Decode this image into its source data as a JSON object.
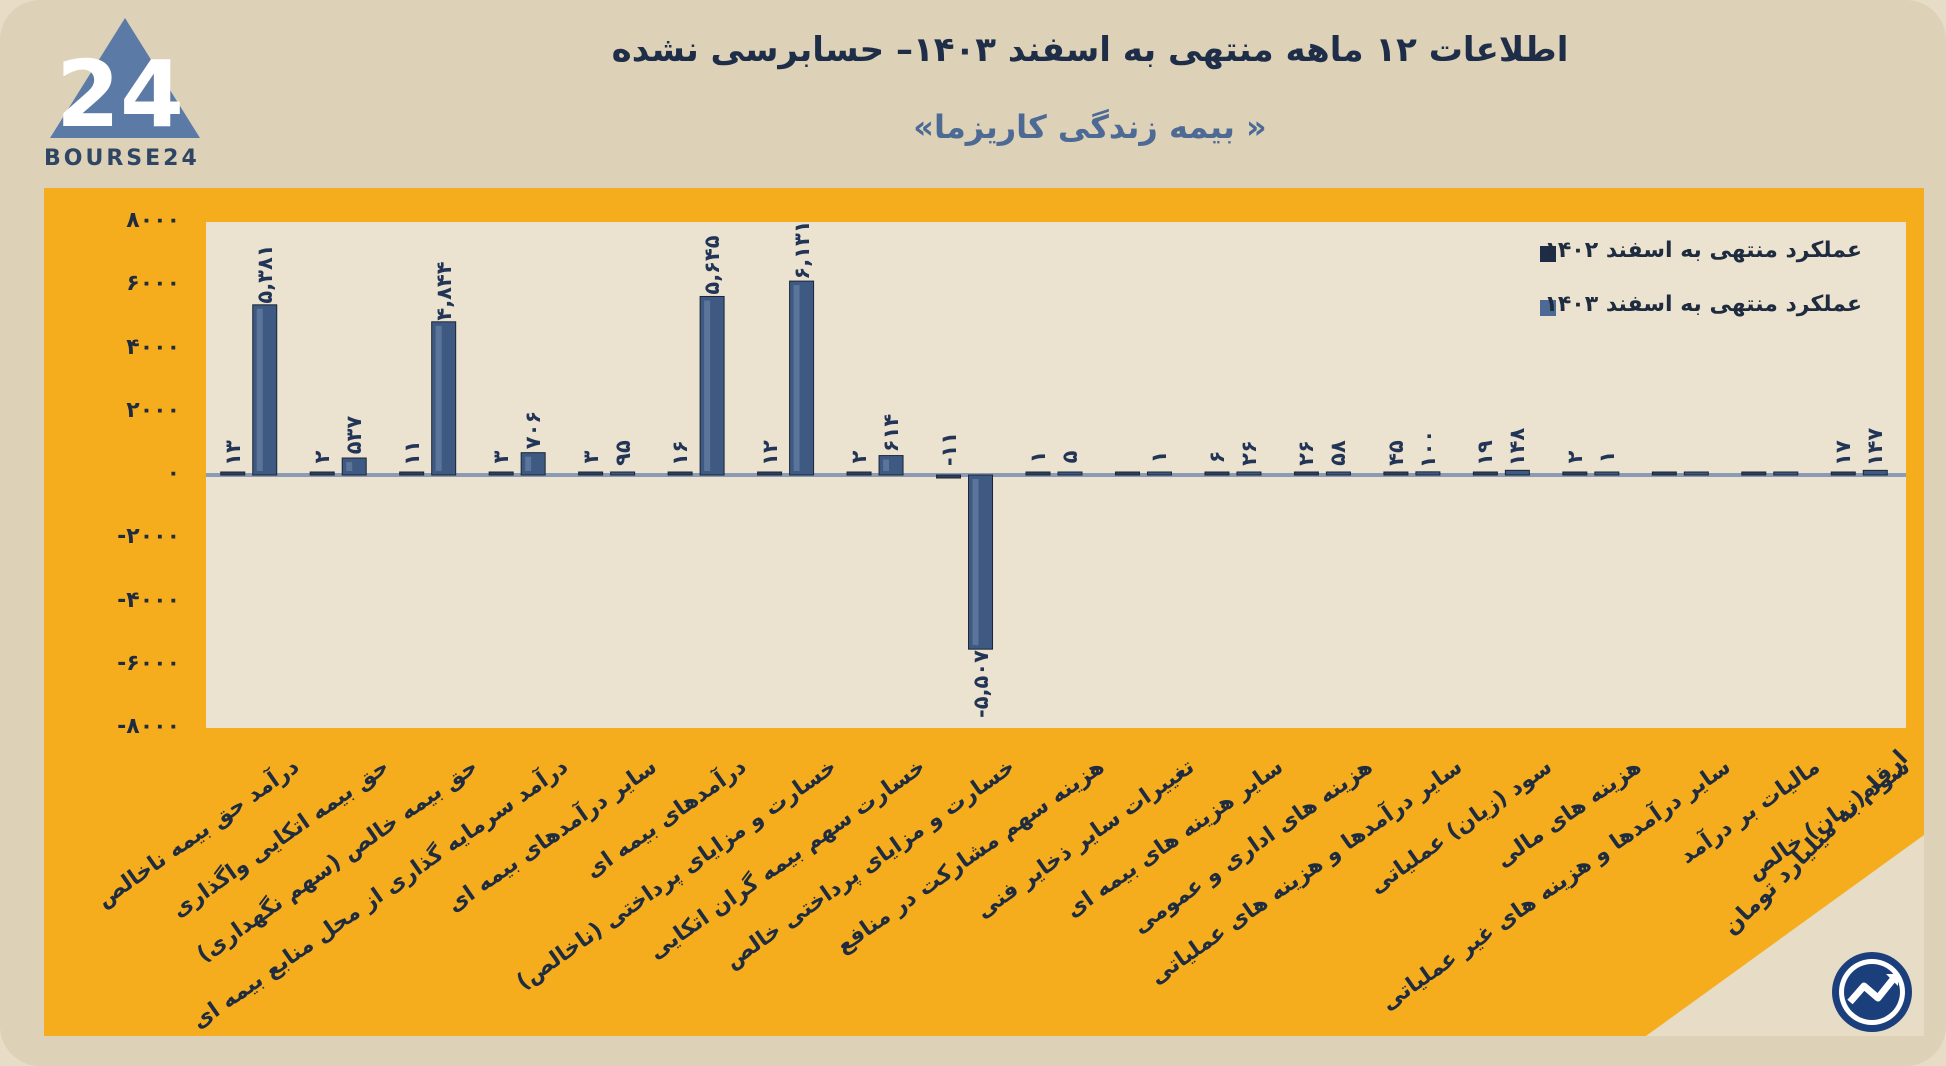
{
  "header": {
    "title": "اطلاعات ۱۲ ماهه منتهی به اسفند  ۱۴۰۳– حسابرسی نشده",
    "subtitle": "« بیمه زندگی کاریزما»",
    "logo_text": "BOURSE24",
    "logo_mark": "24"
  },
  "unit_note": "ارقام به میلیارد تومان",
  "colors": {
    "panel": "#f6ad1d",
    "bar_1402": "#2d3f5c",
    "bar_1403": "#3f5a82",
    "title": "#1e2d48",
    "subtitle": "#4d6a95"
  },
  "chart_data": {
    "type": "bar",
    "title": "",
    "xlabel": "",
    "ylabel": "",
    "ylim": [
      -8000,
      8000
    ],
    "yticks": [
      8000,
      6000,
      4000,
      2000,
      0,
      -2000,
      -4000,
      -6000,
      -8000
    ],
    "ytick_labels": [
      "۸۰۰۰",
      "۶۰۰۰",
      "۴۰۰۰",
      "۲۰۰۰",
      "۰",
      "-۲۰۰۰",
      "-۴۰۰۰",
      "-۶۰۰۰",
      "-۸۰۰۰"
    ],
    "legend_position": "top-right",
    "categories": [
      "درآمد حق بیمه ناخالص",
      "حق بیمه اتکایی واگذاری",
      "حق بیمه خالص (سهم نگهداری)",
      "درآمد سرمایه گذاری از محل منابع بیمه ای",
      "سایر درآمدهای بیمه ای",
      "درآمدهای بیمه ای",
      "خسارت و مزایای پرداختی (ناخالص)",
      "خسارت سهم بیمه گران اتکایی",
      "خسارت و مزایای پرداختی خالص",
      "هزینه سهم مشارکت در منافع",
      "تغییرات سایر ذخایر فنی",
      "سایر هزینه های بیمه ای",
      "هزینه های اداری و عمومی",
      "سایر درآمدها و هزینه های عملیاتی",
      "سود (زیان) عملیاتی",
      "هزینه های مالی",
      "سایر درآمدها و هزینه های غیر عملیاتی",
      "مالیات بر درآمد",
      "سود (زیان) خالص"
    ],
    "series": [
      {
        "name": "عملکرد منتهی به اسفند ۱۴۰۲",
        "values": [
          13,
          2,
          11,
          3,
          3,
          16,
          12,
          2,
          -11,
          1,
          0,
          6,
          26,
          45,
          19,
          2,
          0,
          0,
          17
        ],
        "labels": [
          "۱۳",
          "۲",
          "۱۱",
          "۳",
          "۳",
          "۱۶",
          "۱۲",
          "۲",
          "-۱۱",
          "۱",
          "",
          "۶",
          "۲۶",
          "۴۵",
          "۱۹",
          "۲",
          "",
          "",
          "۱۷"
        ]
      },
      {
        "name": "عملکرد منتهی به اسفند ۱۴۰۳",
        "values": [
          5381,
          537,
          4844,
          706,
          95,
          5645,
          6131,
          614,
          -5507,
          5,
          1,
          26,
          58,
          100,
          148,
          1,
          0,
          0,
          147
        ],
        "labels": [
          "۵,۳۸۱",
          "۵۳۷",
          "۴,۸۴۴",
          "۷۰۶",
          "۹۵",
          "۵,۶۴۵",
          "۶,۱۳۱",
          "۶۱۴",
          "-۵,۵۰۷",
          "۵",
          "۱",
          "۲۶",
          "۵۸",
          "۱۰۰",
          "۱۴۸",
          "۱",
          "",
          "",
          "۱۴۷"
        ]
      }
    ]
  }
}
